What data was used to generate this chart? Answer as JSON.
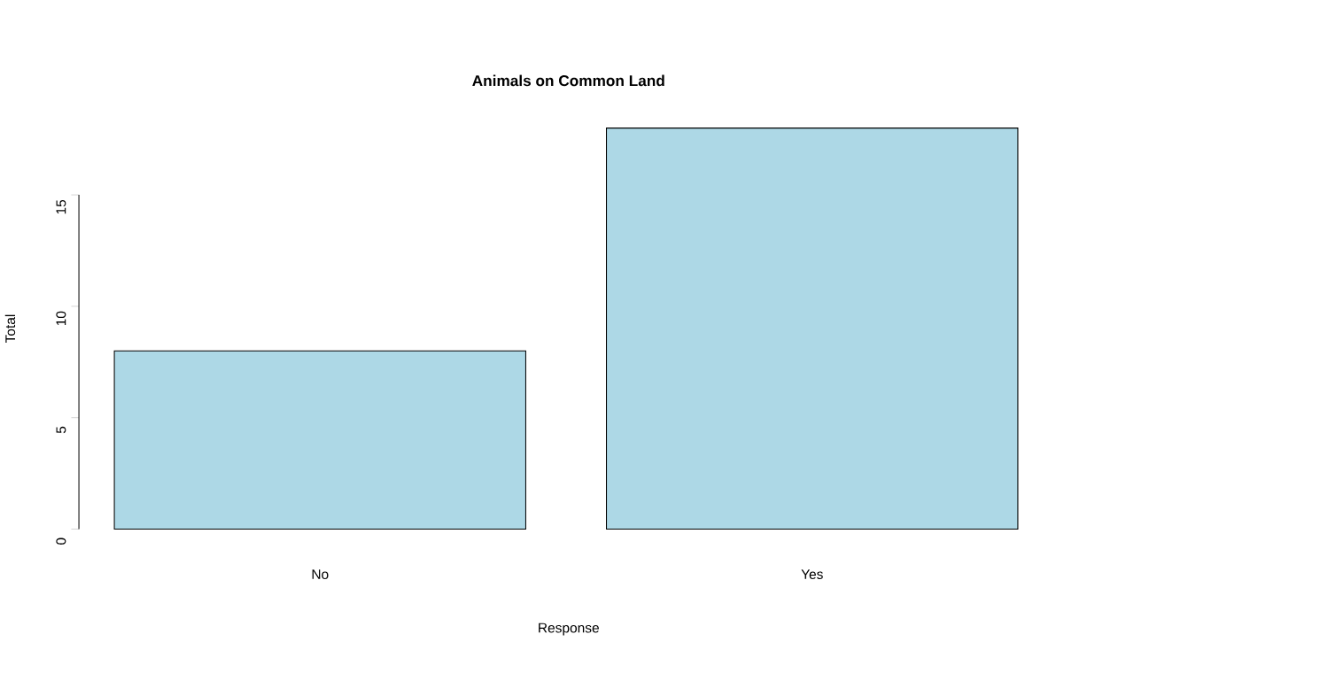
{
  "chart_data": {
    "type": "bar",
    "title": "Animals on Common Land",
    "xlabel": "Response",
    "ylabel": "Total",
    "categories": [
      "No",
      "Yes"
    ],
    "values": [
      8,
      18
    ],
    "color": "#add8e6",
    "ylim": [
      0,
      18
    ],
    "yticks": [
      0,
      5,
      10,
      15
    ]
  }
}
